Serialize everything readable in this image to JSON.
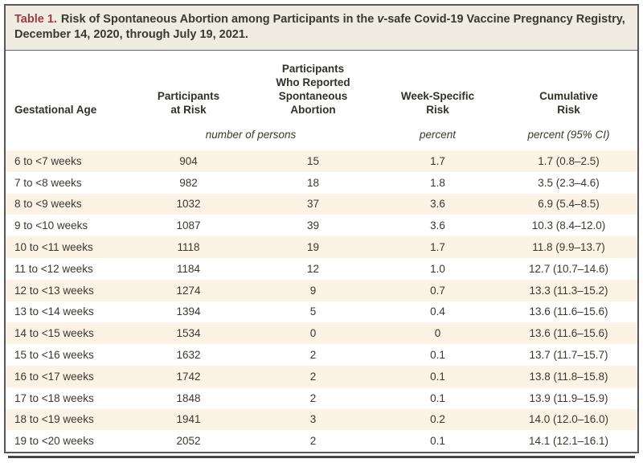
{
  "table": {
    "title": {
      "label": "Table 1.",
      "text_before_v": "Risk of Spontaneous Abortion among Participants in the ",
      "v_italic": "v",
      "text_after_v": "-safe Covid-19 Vaccine Pregnancy Registry, December 14, 2020, through July 19, 2021."
    },
    "columns": [
      "Gestational Age",
      "Participants\nat Risk",
      "Participants\nWho Reported\nSpontaneous\nAbortion",
      "Week-Specific\nRisk",
      "Cumulative\nRisk"
    ],
    "unit_row": {
      "number_of_persons": "number of persons",
      "percent": "percent",
      "percent_ci": "percent (95% CI)"
    },
    "rows": [
      {
        "age": "6 to <7 weeks",
        "at_risk": "904",
        "reported": "15",
        "week_risk": "1.7",
        "cumulative_risk": "1.7 (0.8–2.5)"
      },
      {
        "age": "7 to <8 weeks",
        "at_risk": "982",
        "reported": "18",
        "week_risk": "1.8",
        "cumulative_risk": "3.5 (2.3–4.6)"
      },
      {
        "age": "8 to <9 weeks",
        "at_risk": "1032",
        "reported": "37",
        "week_risk": "3.6",
        "cumulative_risk": "6.9 (5.4–8.5)"
      },
      {
        "age": "9 to <10 weeks",
        "at_risk": "1087",
        "reported": "39",
        "week_risk": "3.6",
        "cumulative_risk": "10.3 (8.4–12.0)"
      },
      {
        "age": "10 to <11 weeks",
        "at_risk": "1118",
        "reported": "19",
        "week_risk": "1.7",
        "cumulative_risk": "11.8 (9.9–13.7)"
      },
      {
        "age": "11 to <12 weeks",
        "at_risk": "1184",
        "reported": "12",
        "week_risk": "1.0",
        "cumulative_risk": "12.7 (10.7–14.6)"
      },
      {
        "age": "12 to <13 weeks",
        "at_risk": "1274",
        "reported": "9",
        "week_risk": "0.7",
        "cumulative_risk": "13.3 (11.3–15.2)"
      },
      {
        "age": "13 to <14 weeks",
        "at_risk": "1394",
        "reported": "5",
        "week_risk": "0.4",
        "cumulative_risk": "13.6 (11.6–15.6)"
      },
      {
        "age": "14 to <15 weeks",
        "at_risk": "1534",
        "reported": "0",
        "week_risk": "0",
        "cumulative_risk": "13.6 (11.6–15.6)"
      },
      {
        "age": "15 to <16 weeks",
        "at_risk": "1632",
        "reported": "2",
        "week_risk": "0.1",
        "cumulative_risk": "13.7 (11.7–15.7)"
      },
      {
        "age": "16 to <17 weeks",
        "at_risk": "1742",
        "reported": "2",
        "week_risk": "0.1",
        "cumulative_risk": "13.8 (11.8–15.8)"
      },
      {
        "age": "17 to <18 weeks",
        "at_risk": "1848",
        "reported": "2",
        "week_risk": "0.1",
        "cumulative_risk": "13.9 (11.9–15.9)"
      },
      {
        "age": "18 to <19 weeks",
        "at_risk": "1941",
        "reported": "3",
        "week_risk": "0.2",
        "cumulative_risk": "14.0 (12.0–16.0)"
      },
      {
        "age": "19 to <20 weeks",
        "at_risk": "2052",
        "reported": "2",
        "week_risk": "0.1",
        "cumulative_risk": "14.1 (12.1–16.1)"
      }
    ]
  },
  "colors": {
    "title_label_red": "#9e3a42",
    "title_bar_background": "#f1ece2",
    "row_stripe": "#fdf3e4",
    "border": "#57575a",
    "text": "#39382f"
  }
}
